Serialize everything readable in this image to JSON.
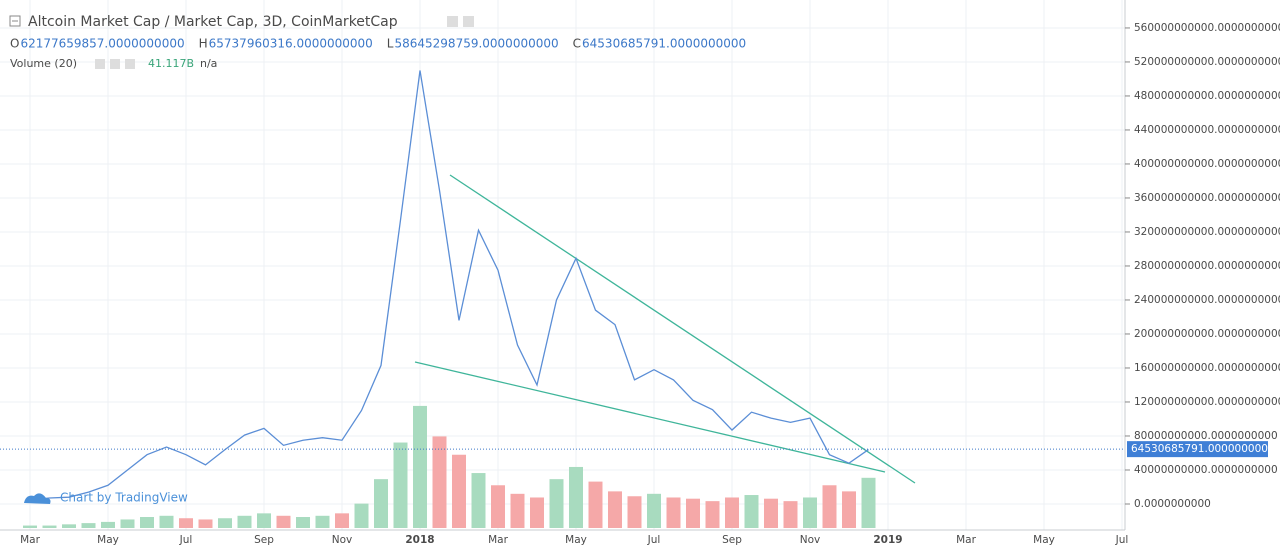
{
  "header": {
    "title": "Altcoin Market Cap / Market Cap, 3D, CoinMarketCap",
    "ohlc": [
      {
        "key": "O",
        "value": "62177659857.0000000000"
      },
      {
        "key": "H",
        "value": "65737960316.0000000000"
      },
      {
        "key": "L",
        "value": "58645298759.0000000000"
      },
      {
        "key": "C",
        "value": "64530685791.0000000000"
      }
    ],
    "volume_ma": "n/a"
  },
  "watermark": "Chart by TradingView",
  "chart_data": {
    "type": "line",
    "categories": [
      "Mar",
      null,
      null,
      null,
      "May",
      null,
      null,
      null,
      "Jul",
      null,
      null,
      null,
      "Sep",
      null,
      null,
      null,
      "Nov",
      null,
      null,
      null,
      "2018",
      null,
      null,
      null,
      "Mar",
      null,
      null,
      null,
      "May",
      null,
      null,
      null,
      "Jul",
      null,
      null,
      null,
      "Sep",
      null,
      null,
      null,
      "Nov",
      null,
      null,
      null,
      "2019",
      null,
      null,
      null,
      "Mar",
      null,
      null,
      null,
      "May",
      null,
      null,
      null,
      "Jul",
      null
    ],
    "series": [
      {
        "color": "#5b8ed6",
        "values": [
          5000000000.0,
          7000000000.0,
          8000000000.0,
          14000000000.0,
          22000000000.0,
          40000000000.0,
          58000000000.0,
          67000000000.0,
          58000000000.0,
          46000000000.0,
          64000000000.0,
          81000000000.0,
          89000000000.0,
          69000000000.0,
          75000000000.0,
          78000000000.0,
          75000000000.0,
          110000000000.0,
          163000000000.0,
          334000000000.0,
          510000000000.0,
          369000000000.0,
          216000000000.0,
          322000000000.0,
          275000000000.0,
          187000000000.0,
          140000000000.0,
          240000000000.0,
          289000000000.0,
          228000000000.0,
          211000000000.0,
          146000000000.0,
          158000000000.0,
          146000000000.0,
          122000000000.0,
          111000000000.0,
          87000000000.0,
          108000000000.0,
          101000000000.0,
          96000000000.0,
          101000000000.0,
          58000000000.0,
          48000000000.0,
          64000000000.0,
          null,
          null,
          null,
          null,
          null,
          null,
          null,
          null,
          null,
          null,
          null,
          null,
          null,
          null
        ]
      },
      {
        "name": "Volume (20)",
        "type": "bar",
        "axis": "y2",
        "up_color": "#a8dbbf",
        "down_color": "#f5a8a8",
        "last_label": "41.117B",
        "values": [
          2000000000.0,
          2000000000.0,
          3000000000.0,
          4000000000.0,
          5000000000.0,
          7000000000.0,
          9000000000.0,
          10000000000.0,
          8000000000.0,
          7000000000.0,
          8000000000.0,
          10000000000.0,
          12000000000.0,
          10000000000.0,
          9000000000.0,
          10000000000.0,
          12000000000.0,
          20000000000.0,
          40000000000.0,
          70000000000.0,
          100000000000.0,
          75000000000.0,
          60000000000.0,
          45000000000.0,
          35000000000.0,
          28000000000.0,
          25000000000.0,
          40000000000.0,
          50000000000.0,
          38000000000.0,
          30000000000.0,
          26000000000.0,
          28000000000.0,
          25000000000.0,
          24000000000.0,
          22000000000.0,
          25000000000.0,
          27000000000.0,
          24000000000.0,
          22000000000.0,
          25000000000.0,
          35000000000.0,
          30000000000.0,
          41117000000.0,
          null,
          null,
          null,
          null,
          null,
          null,
          null,
          null,
          null,
          null,
          null,
          null,
          null,
          null
        ]
      }
    ],
    "ylim": [
      -30600000000.0,
      587000000000.0
    ],
    "yticks": [
      {
        "value": 0,
        "label": "0.0000000000"
      },
      {
        "value": 40000000000,
        "label": "40000000000.0000000000"
      },
      {
        "value": 80000000000,
        "label": "80000000000.0000000000"
      },
      {
        "value": 120000000000,
        "label": "120000000000.0000000000"
      },
      {
        "value": 160000000000,
        "label": "160000000000.0000000000"
      },
      {
        "value": 200000000000,
        "label": "200000000000.0000000000"
      },
      {
        "value": 240000000000,
        "label": "240000000000.0000000000"
      },
      {
        "value": 280000000000,
        "label": "280000000000.0000000000"
      },
      {
        "value": 320000000000,
        "label": "320000000000.0000000000"
      },
      {
        "value": 360000000000,
        "label": "360000000000.0000000000"
      },
      {
        "value": 400000000000,
        "label": "400000000000.0000000000"
      },
      {
        "value": 440000000000,
        "label": "440000000000.0000000000"
      },
      {
        "value": 480000000000,
        "label": "480000000000.0000000000"
      },
      {
        "value": 520000000000,
        "label": "520000000000.0000000000"
      },
      {
        "value": 560000000000,
        "label": "560000000000.0000000000"
      }
    ],
    "y2lim": [
      0,
      430000000000.0
    ],
    "grid": true,
    "last_value": {
      "value": 64530685791,
      "label": "64530685791.0000000000"
    }
  }
}
